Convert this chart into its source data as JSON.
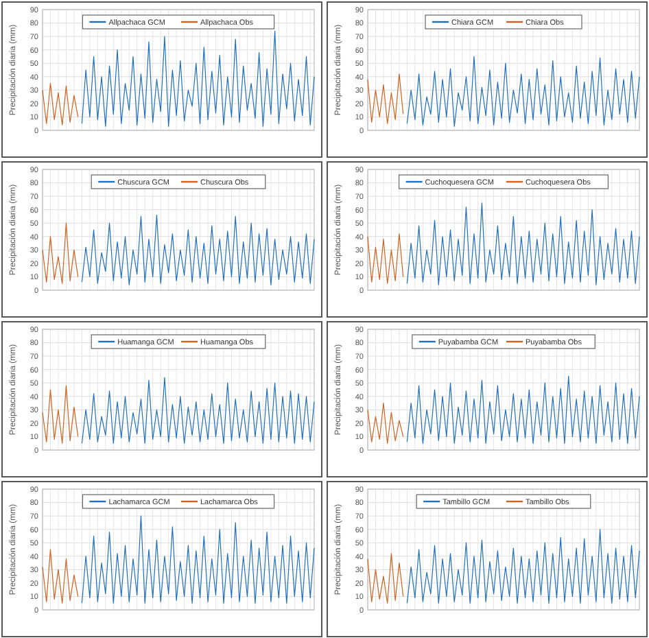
{
  "chart_data": [
    {
      "type": "line",
      "ylabel": "Precipitación diaria (mm)",
      "ylim": [
        0,
        90
      ],
      "yticks": [
        0,
        10,
        20,
        30,
        40,
        50,
        60,
        70,
        80,
        90
      ],
      "grid": true,
      "legend": "top",
      "tick_labels": "y",
      "line_style": "solid",
      "categories": [
        null,
        null,
        null,
        null,
        null,
        null,
        null,
        null,
        null,
        null,
        null,
        null,
        null,
        null,
        null,
        null,
        null,
        null,
        null,
        null,
        null,
        null,
        null,
        null,
        null,
        null,
        null,
        null,
        null,
        null,
        null,
        null,
        null,
        null,
        null,
        null,
        null,
        null,
        null,
        null,
        null,
        null,
        null,
        null,
        null,
        null,
        null,
        null,
        null,
        null,
        null,
        null,
        null,
        null,
        null,
        null,
        null,
        null,
        null,
        null,
        null,
        null,
        null,
        null,
        null,
        null,
        null,
        null,
        null,
        null
      ],
      "series": [
        {
          "name": "Allpachaca GCM",
          "color": "#1f6fbf",
          "values": [
            null,
            null,
            null,
            null,
            null,
            null,
            null,
            null,
            null,
            null,
            5,
            45,
            10,
            55,
            8,
            40,
            3,
            48,
            12,
            60,
            5,
            35,
            15,
            55,
            4,
            42,
            9,
            66,
            6,
            38,
            14,
            70,
            3,
            45,
            11,
            52,
            7,
            30,
            18,
            50,
            5,
            62,
            8,
            44,
            13,
            56,
            4,
            40,
            10,
            68,
            6,
            48,
            15,
            35,
            9,
            58,
            3,
            46,
            12,
            74,
            5,
            42,
            16,
            50,
            7,
            38,
            11,
            55,
            4,
            40
          ]
        },
        {
          "name": "Allpachaca Obs",
          "color": "#d0611e",
          "values": [
            30,
            5,
            35,
            8,
            28,
            4,
            33,
            6,
            26,
            10,
            null,
            null,
            null,
            null,
            null,
            null,
            null,
            null,
            null,
            null,
            null,
            null,
            null,
            null,
            null,
            null,
            null,
            null,
            null,
            null,
            null,
            null,
            null,
            null,
            null,
            null,
            null,
            null,
            null,
            null,
            null,
            null,
            null,
            null,
            null,
            null,
            null,
            null,
            null,
            null,
            null,
            null,
            null,
            null,
            null,
            null,
            null,
            null,
            null,
            null,
            null,
            null,
            null,
            null,
            null,
            null,
            null,
            null,
            null,
            null
          ]
        }
      ]
    },
    {
      "type": "line",
      "ylabel": "Precipitación diaria (mm)",
      "ylim": [
        0,
        90
      ],
      "yticks": [
        0,
        10,
        20,
        30,
        40,
        50,
        60,
        70,
        80,
        90
      ],
      "grid": true,
      "legend": "top",
      "tick_labels": "y",
      "line_style": "solid",
      "categories": [
        null,
        null,
        null,
        null,
        null,
        null,
        null,
        null,
        null,
        null,
        null,
        null,
        null,
        null,
        null,
        null,
        null,
        null,
        null,
        null,
        null,
        null,
        null,
        null,
        null,
        null,
        null,
        null,
        null,
        null,
        null,
        null,
        null,
        null,
        null,
        null,
        null,
        null,
        null,
        null,
        null,
        null,
        null,
        null,
        null,
        null,
        null,
        null,
        null,
        null,
        null,
        null,
        null,
        null,
        null,
        null,
        null,
        null,
        null,
        null,
        null,
        null,
        null,
        null,
        null,
        null,
        null,
        null,
        null,
        null
      ],
      "series": [
        {
          "name": "Chiara GCM",
          "color": "#1f6fbf",
          "values": [
            null,
            null,
            null,
            null,
            null,
            null,
            null,
            null,
            null,
            null,
            5,
            30,
            8,
            42,
            4,
            25,
            12,
            44,
            6,
            38,
            10,
            46,
            3,
            28,
            15,
            40,
            7,
            55,
            5,
            32,
            11,
            45,
            4,
            36,
            9,
            50,
            6,
            30,
            13,
            42,
            5,
            38,
            8,
            46,
            12,
            34,
            4,
            52,
            7,
            40,
            10,
            28,
            6,
            48,
            9,
            36,
            5,
            44,
            11,
            54,
            4,
            30,
            8,
            46,
            12,
            38,
            6,
            44,
            9,
            40
          ]
        },
        {
          "name": "Chiara Obs",
          "color": "#d0611e",
          "values": [
            38,
            6,
            30,
            10,
            34,
            5,
            28,
            8,
            42,
            12,
            null,
            null,
            null,
            null,
            null,
            null,
            null,
            null,
            null,
            null,
            null,
            null,
            null,
            null,
            null,
            null,
            null,
            null,
            null,
            null,
            null,
            null,
            null,
            null,
            null,
            null,
            null,
            null,
            null,
            null,
            null,
            null,
            null,
            null,
            null,
            null,
            null,
            null,
            null,
            null,
            null,
            null,
            null,
            null,
            null,
            null,
            null,
            null,
            null,
            null,
            null,
            null,
            null,
            null,
            null,
            null,
            null,
            null,
            null,
            null
          ]
        }
      ]
    },
    {
      "type": "line",
      "ylabel": "Precipitación diaria (mm)",
      "ylim": [
        0,
        90
      ],
      "yticks": [
        0,
        10,
        20,
        30,
        40,
        50,
        60,
        70,
        80,
        90
      ],
      "grid": true,
      "legend": "top",
      "tick_labels": "y",
      "line_style": "solid",
      "categories": [
        null,
        null,
        null,
        null,
        null,
        null,
        null,
        null,
        null,
        null,
        null,
        null,
        null,
        null,
        null,
        null,
        null,
        null,
        null,
        null,
        null,
        null,
        null,
        null,
        null,
        null,
        null,
        null,
        null,
        null,
        null,
        null,
        null,
        null,
        null,
        null,
        null,
        null,
        null,
        null,
        null,
        null,
        null,
        null,
        null,
        null,
        null,
        null,
        null,
        null,
        null,
        null,
        null,
        null,
        null,
        null,
        null,
        null,
        null,
        null,
        null,
        null,
        null,
        null,
        null,
        null,
        null,
        null,
        null,
        null
      ],
      "series": [
        {
          "name": "Chuscura GCM",
          "color": "#1f6fbf",
          "values": [
            null,
            null,
            null,
            null,
            null,
            null,
            null,
            null,
            null,
            null,
            6,
            32,
            10,
            45,
            5,
            28,
            14,
            50,
            7,
            36,
            9,
            40,
            4,
            30,
            12,
            55,
            6,
            38,
            10,
            56,
            5,
            34,
            13,
            42,
            7,
            30,
            11,
            45,
            6,
            40,
            9,
            35,
            5,
            48,
            12,
            38,
            7,
            44,
            10,
            55,
            5,
            36,
            9,
            50,
            6,
            42,
            11,
            46,
            4,
            38,
            8,
            30,
            12,
            40,
            6,
            36,
            9,
            42,
            5,
            38
          ]
        },
        {
          "name": "Chuscura Obs",
          "color": "#d0611e",
          "values": [
            30,
            6,
            40,
            8,
            25,
            5,
            50,
            7,
            30,
            10,
            null,
            null,
            null,
            null,
            null,
            null,
            null,
            null,
            null,
            null,
            null,
            null,
            null,
            null,
            null,
            null,
            null,
            null,
            null,
            null,
            null,
            null,
            null,
            null,
            null,
            null,
            null,
            null,
            null,
            null,
            null,
            null,
            null,
            null,
            null,
            null,
            null,
            null,
            null,
            null,
            null,
            null,
            null,
            null,
            null,
            null,
            null,
            null,
            null,
            null,
            null,
            null,
            null,
            null,
            null,
            null,
            null,
            null,
            null,
            null
          ]
        }
      ]
    },
    {
      "type": "line",
      "ylabel": "Precipitación diaria (mm)",
      "ylim": [
        0,
        90
      ],
      "yticks": [
        0,
        10,
        20,
        30,
        40,
        50,
        60,
        70,
        80,
        90
      ],
      "grid": true,
      "legend": "top",
      "tick_labels": "y",
      "line_style": "solid",
      "categories": [
        null,
        null,
        null,
        null,
        null,
        null,
        null,
        null,
        null,
        null,
        null,
        null,
        null,
        null,
        null,
        null,
        null,
        null,
        null,
        null,
        null,
        null,
        null,
        null,
        null,
        null,
        null,
        null,
        null,
        null,
        null,
        null,
        null,
        null,
        null,
        null,
        null,
        null,
        null,
        null,
        null,
        null,
        null,
        null,
        null,
        null,
        null,
        null,
        null,
        null,
        null,
        null,
        null,
        null,
        null,
        null,
        null,
        null,
        null,
        null,
        null,
        null,
        null,
        null,
        null,
        null,
        null,
        null,
        null,
        null
      ],
      "series": [
        {
          "name": "Cuchoquesera GCM",
          "color": "#1f6fbf",
          "values": [
            null,
            null,
            null,
            null,
            null,
            null,
            null,
            null,
            null,
            null,
            5,
            35,
            9,
            48,
            6,
            30,
            12,
            52,
            4,
            40,
            10,
            45,
            7,
            38,
            11,
            62,
            5,
            42,
            9,
            65,
            6,
            30,
            12,
            48,
            8,
            35,
            10,
            55,
            5,
            40,
            9,
            44,
            6,
            38,
            12,
            50,
            7,
            42,
            10,
            55,
            5,
            36,
            9,
            52,
            6,
            44,
            11,
            60,
            4,
            40,
            8,
            35,
            12,
            46,
            6,
            38,
            9,
            44,
            5,
            40
          ]
        },
        {
          "name": "Cuchoquesera Obs",
          "color": "#d0611e",
          "values": [
            40,
            6,
            32,
            8,
            38,
            5,
            30,
            7,
            42,
            10,
            null,
            null,
            null,
            null,
            null,
            null,
            null,
            null,
            null,
            null,
            null,
            null,
            null,
            null,
            null,
            null,
            null,
            null,
            null,
            null,
            null,
            null,
            null,
            null,
            null,
            null,
            null,
            null,
            null,
            null,
            null,
            null,
            null,
            null,
            null,
            null,
            null,
            null,
            null,
            null,
            null,
            null,
            null,
            null,
            null,
            null,
            null,
            null,
            null,
            null,
            null,
            null,
            null,
            null,
            null,
            null,
            null,
            null,
            null,
            null
          ]
        }
      ]
    },
    {
      "type": "line",
      "ylabel": "Precipitación diaria (mm)",
      "ylim": [
        0,
        90
      ],
      "yticks": [
        0,
        10,
        20,
        30,
        40,
        50,
        60,
        70,
        80,
        90
      ],
      "grid": true,
      "legend": "top",
      "tick_labels": "y",
      "line_style": "solid",
      "categories": [
        null,
        null,
        null,
        null,
        null,
        null,
        null,
        null,
        null,
        null,
        null,
        null,
        null,
        null,
        null,
        null,
        null,
        null,
        null,
        null,
        null,
        null,
        null,
        null,
        null,
        null,
        null,
        null,
        null,
        null,
        null,
        null,
        null,
        null,
        null,
        null,
        null,
        null,
        null,
        null,
        null,
        null,
        null,
        null,
        null,
        null,
        null,
        null,
        null,
        null,
        null,
        null,
        null,
        null,
        null,
        null,
        null,
        null,
        null,
        null,
        null,
        null,
        null,
        null,
        null,
        null,
        null,
        null,
        null,
        null
      ],
      "series": [
        {
          "name": "Huamanga GCM",
          "color": "#1f6fbf",
          "values": [
            null,
            null,
            null,
            null,
            null,
            null,
            null,
            null,
            null,
            null,
            5,
            30,
            8,
            42,
            6,
            25,
            11,
            44,
            5,
            36,
            9,
            40,
            6,
            28,
            12,
            38,
            5,
            52,
            8,
            30,
            10,
            54,
            6,
            34,
            9,
            40,
            5,
            32,
            11,
            36,
            6,
            30,
            8,
            42,
            10,
            34,
            5,
            50,
            7,
            38,
            9,
            30,
            6,
            44,
            10,
            36,
            5,
            46,
            8,
            50,
            6,
            40,
            9,
            44,
            5,
            42,
            8,
            40,
            6,
            36
          ]
        },
        {
          "name": "Huamanga Obs",
          "color": "#d0611e",
          "values": [
            28,
            6,
            45,
            8,
            30,
            5,
            48,
            7,
            32,
            10,
            null,
            null,
            null,
            null,
            null,
            null,
            null,
            null,
            null,
            null,
            null,
            null,
            null,
            null,
            null,
            null,
            null,
            null,
            null,
            null,
            null,
            null,
            null,
            null,
            null,
            null,
            null,
            null,
            null,
            null,
            null,
            null,
            null,
            null,
            null,
            null,
            null,
            null,
            null,
            null,
            null,
            null,
            null,
            null,
            null,
            null,
            null,
            null,
            null,
            null,
            null,
            null,
            null,
            null,
            null,
            null,
            null,
            null,
            null,
            null
          ]
        }
      ]
    },
    {
      "type": "line",
      "ylabel": "Precipitación diaria (mm)",
      "ylim": [
        0,
        90
      ],
      "yticks": [
        0,
        10,
        20,
        30,
        40,
        50,
        60,
        70,
        80,
        90
      ],
      "grid": true,
      "legend": "top",
      "tick_labels": "y",
      "line_style": "solid",
      "categories": [
        null,
        null,
        null,
        null,
        null,
        null,
        null,
        null,
        null,
        null,
        null,
        null,
        null,
        null,
        null,
        null,
        null,
        null,
        null,
        null,
        null,
        null,
        null,
        null,
        null,
        null,
        null,
        null,
        null,
        null,
        null,
        null,
        null,
        null,
        null,
        null,
        null,
        null,
        null,
        null,
        null,
        null,
        null,
        null,
        null,
        null,
        null,
        null,
        null,
        null,
        null,
        null,
        null,
        null,
        null,
        null,
        null,
        null,
        null,
        null,
        null,
        null,
        null,
        null,
        null,
        null,
        null,
        null,
        null,
        null
      ],
      "series": [
        {
          "name": "Puyabamba GCM",
          "color": "#1f6fbf",
          "values": [
            null,
            null,
            null,
            null,
            null,
            null,
            null,
            null,
            null,
            null,
            6,
            35,
            9,
            48,
            5,
            30,
            12,
            45,
            7,
            40,
            10,
            50,
            5,
            32,
            11,
            44,
            6,
            38,
            9,
            52,
            5,
            36,
            12,
            48,
            7,
            30,
            10,
            42,
            6,
            38,
            9,
            45,
            5,
            36,
            11,
            50,
            6,
            40,
            9,
            46,
            5,
            55,
            10,
            38,
            6,
            44,
            9,
            40,
            5,
            48,
            11,
            36,
            6,
            50,
            8,
            42,
            5,
            46,
            9,
            40
          ]
        },
        {
          "name": "Puyabamba Obs",
          "color": "#d0611e",
          "values": [
            30,
            6,
            25,
            8,
            35,
            5,
            28,
            7,
            22,
            10,
            null,
            null,
            null,
            null,
            null,
            null,
            null,
            null,
            null,
            null,
            null,
            null,
            null,
            null,
            null,
            null,
            null,
            null,
            null,
            null,
            null,
            null,
            null,
            null,
            null,
            null,
            null,
            null,
            null,
            null,
            null,
            null,
            null,
            null,
            null,
            null,
            null,
            null,
            null,
            null,
            null,
            null,
            null,
            null,
            null,
            null,
            null,
            null,
            null,
            null,
            null,
            null,
            null,
            null,
            null,
            null,
            null,
            null,
            null,
            null
          ]
        }
      ]
    },
    {
      "type": "line",
      "ylabel": "Precipitación diaria (mm)",
      "ylim": [
        0,
        90
      ],
      "yticks": [
        0,
        10,
        20,
        30,
        40,
        50,
        60,
        70,
        80,
        90
      ],
      "grid": true,
      "legend": "top",
      "tick_labels": "y",
      "line_style": "solid",
      "categories": [
        null,
        null,
        null,
        null,
        null,
        null,
        null,
        null,
        null,
        null,
        null,
        null,
        null,
        null,
        null,
        null,
        null,
        null,
        null,
        null,
        null,
        null,
        null,
        null,
        null,
        null,
        null,
        null,
        null,
        null,
        null,
        null,
        null,
        null,
        null,
        null,
        null,
        null,
        null,
        null,
        null,
        null,
        null,
        null,
        null,
        null,
        null,
        null,
        null,
        null,
        null,
        null,
        null,
        null,
        null,
        null,
        null,
        null,
        null,
        null,
        null,
        null,
        null,
        null,
        null,
        null,
        null,
        null,
        null,
        null
      ],
      "series": [
        {
          "name": "Lachamarca GCM",
          "color": "#1f6fbf",
          "values": [
            null,
            null,
            null,
            null,
            null,
            null,
            null,
            null,
            null,
            null,
            5,
            40,
            9,
            55,
            6,
            35,
            12,
            58,
            5,
            42,
            10,
            48,
            6,
            38,
            11,
            70,
            5,
            45,
            9,
            52,
            6,
            40,
            12,
            62,
            7,
            36,
            10,
            48,
            5,
            44,
            9,
            55,
            6,
            38,
            11,
            60,
            5,
            42,
            9,
            65,
            6,
            40,
            10,
            52,
            5,
            46,
            11,
            58,
            6,
            40,
            9,
            48,
            5,
            55,
            10,
            44,
            6,
            50,
            9,
            46
          ]
        },
        {
          "name": "Lachamarca Obs",
          "color": "#d0611e",
          "values": [
            32,
            6,
            45,
            8,
            30,
            5,
            38,
            7,
            26,
            10,
            null,
            null,
            null,
            null,
            null,
            null,
            null,
            null,
            null,
            null,
            null,
            null,
            null,
            null,
            null,
            null,
            null,
            null,
            null,
            null,
            null,
            null,
            null,
            null,
            null,
            null,
            null,
            null,
            null,
            null,
            null,
            null,
            null,
            null,
            null,
            null,
            null,
            null,
            null,
            null,
            null,
            null,
            null,
            null,
            null,
            null,
            null,
            null,
            null,
            null,
            null,
            null,
            null,
            null,
            null,
            null,
            null,
            null,
            null,
            null
          ]
        }
      ]
    },
    {
      "type": "line",
      "ylabel": "Precipitación diaria (mm)",
      "ylim": [
        0,
        90
      ],
      "yticks": [
        0,
        10,
        20,
        30,
        40,
        50,
        60,
        70,
        80,
        90
      ],
      "grid": true,
      "legend": "top",
      "tick_labels": "y",
      "line_style": "solid",
      "categories": [
        null,
        null,
        null,
        null,
        null,
        null,
        null,
        null,
        null,
        null,
        null,
        null,
        null,
        null,
        null,
        null,
        null,
        null,
        null,
        null,
        null,
        null,
        null,
        null,
        null,
        null,
        null,
        null,
        null,
        null,
        null,
        null,
        null,
        null,
        null,
        null,
        null,
        null,
        null,
        null,
        null,
        null,
        null,
        null,
        null,
        null,
        null,
        null,
        null,
        null,
        null,
        null,
        null,
        null,
        null,
        null,
        null,
        null,
        null,
        null,
        null,
        null,
        null,
        null,
        null,
        null,
        null,
        null,
        null,
        null
      ],
      "series": [
        {
          "name": "Tambillo GCM",
          "color": "#1f6fbf",
          "values": [
            null,
            null,
            null,
            null,
            null,
            null,
            null,
            null,
            null,
            null,
            5,
            32,
            9,
            45,
            6,
            28,
            12,
            48,
            5,
            38,
            10,
            42,
            6,
            30,
            11,
            50,
            5,
            40,
            9,
            52,
            6,
            36,
            12,
            44,
            7,
            32,
            10,
            46,
            5,
            40,
            9,
            38,
            6,
            44,
            11,
            50,
            5,
            42,
            9,
            54,
            6,
            38,
            10,
            46,
            5,
            53,
            11,
            40,
            6,
            60,
            9,
            42,
            5,
            46,
            8,
            40,
            6,
            48,
            9,
            44
          ]
        },
        {
          "name": "Tambillo Obs",
          "color": "#d0611e",
          "values": [
            38,
            6,
            30,
            8,
            25,
            5,
            42,
            7,
            35,
            10,
            null,
            null,
            null,
            null,
            null,
            null,
            null,
            null,
            null,
            null,
            null,
            null,
            null,
            null,
            null,
            null,
            null,
            null,
            null,
            null,
            null,
            null,
            null,
            null,
            null,
            null,
            null,
            null,
            null,
            null,
            null,
            null,
            null,
            null,
            null,
            null,
            null,
            null,
            null,
            null,
            null,
            null,
            null,
            null,
            null,
            null,
            null,
            null,
            null,
            null,
            null,
            null,
            null,
            null,
            null,
            null,
            null,
            null,
            null,
            null
          ]
        }
      ]
    }
  ]
}
